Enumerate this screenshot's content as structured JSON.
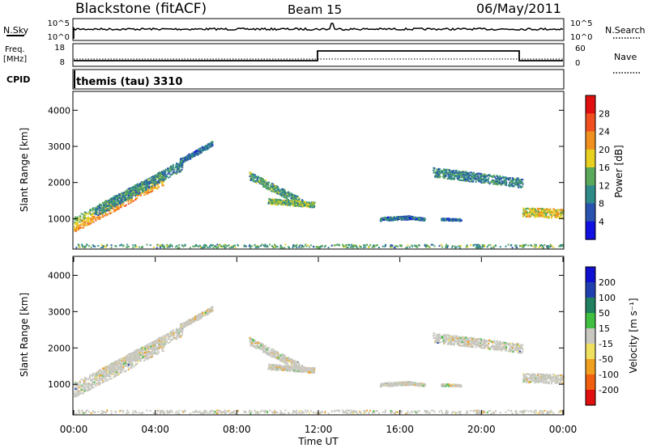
{
  "header": {
    "station": "Blackstone (fitACF)",
    "beam": "Beam 15",
    "date": "06/May/2011"
  },
  "noise_panel": {
    "left_label": "N.Sky",
    "left_ticks": [
      "10^5",
      "10^0"
    ],
    "right_ticks": [
      "10^5",
      "10^0"
    ],
    "right_label": "N.Search"
  },
  "freq_panel": {
    "left_label_1": "Freq.",
    "left_label_2": "[MHz]",
    "left_ticks": [
      "18",
      "8"
    ],
    "right_ticks": [
      "60",
      "0"
    ],
    "right_label": "Nave"
  },
  "cpid_panel": {
    "label": "CPID",
    "text": "themis (tau) 3310"
  },
  "chart_data": [
    {
      "type": "heatmap",
      "panel": "power",
      "ylabel": "Slant Range [km]",
      "yticks": [
        1000,
        2000,
        3000,
        4000
      ],
      "ylim": [
        180,
        4500
      ],
      "colorbar_label": "Power [dB]",
      "colorbar_ticks": [
        4,
        8,
        12,
        16,
        20,
        24,
        28
      ],
      "colorbar_colors": [
        "#1010e0",
        "#2a52b0",
        "#2f8a8a",
        "#5aa85a",
        "#e8d020",
        "#f09020",
        "#f05020",
        "#e01010"
      ],
      "scatter_bands": [
        {
          "t_start": 0.0,
          "t_end": 4.4,
          "r_start": 850,
          "r_end": 2150,
          "width": 420,
          "power": 16
        },
        {
          "t_start": 1.0,
          "t_end": 5.3,
          "r_start": 1200,
          "r_end": 2500,
          "width": 300,
          "power": 8
        },
        {
          "t_start": 5.2,
          "t_end": 6.8,
          "r_start": 2600,
          "r_end": 3100,
          "width": 150,
          "power": 6
        },
        {
          "t_start": 8.6,
          "t_end": 11.2,
          "r_start": 2200,
          "r_end": 1450,
          "width": 220,
          "power": 10
        },
        {
          "t_start": 9.5,
          "t_end": 11.8,
          "r_start": 1500,
          "r_end": 1400,
          "width": 150,
          "power": 12
        },
        {
          "t_start": 15.0,
          "t_end": 16.6,
          "r_start": 1000,
          "r_end": 1050,
          "width": 100,
          "power": 6
        },
        {
          "t_start": 16.2,
          "t_end": 17.2,
          "r_start": 1050,
          "r_end": 1000,
          "width": 80,
          "power": 6
        },
        {
          "t_start": 18.0,
          "t_end": 19.0,
          "r_start": 1000,
          "r_end": 980,
          "width": 60,
          "power": 6
        },
        {
          "t_start": 17.6,
          "t_end": 22.0,
          "r_start": 2300,
          "r_end": 2000,
          "width": 260,
          "power": 8
        },
        {
          "t_start": 22.0,
          "t_end": 24.0,
          "r_start": 1200,
          "r_end": 1150,
          "width": 250,
          "power": 16
        },
        {
          "t_start": 0.0,
          "t_end": 24.0,
          "r_start": 260,
          "r_end": 260,
          "width": 90,
          "power": 10
        }
      ]
    },
    {
      "type": "heatmap",
      "panel": "velocity",
      "ylabel": "Slant Range [km]",
      "yticks": [
        1000,
        2000,
        3000,
        4000
      ],
      "ylim": [
        180,
        4500
      ],
      "xlabel": "Time UT",
      "xticks": [
        "00:00",
        "04:00",
        "08:00",
        "12:00",
        "16:00",
        "20:00",
        "00:00"
      ],
      "xlim": [
        0,
        24
      ],
      "colorbar_label": "Velocity [m s⁻¹]",
      "colorbar_ticks": [
        "200",
        "100",
        "50",
        "15",
        "-15",
        "-50",
        "-100",
        "-200"
      ],
      "colorbar_colors": [
        "#1010d0",
        "#2040b0",
        "#208060",
        "#40c040",
        "#c8c8c0",
        "#f0e060",
        "#f0a020",
        "#f06010",
        "#e01010"
      ]
    }
  ]
}
